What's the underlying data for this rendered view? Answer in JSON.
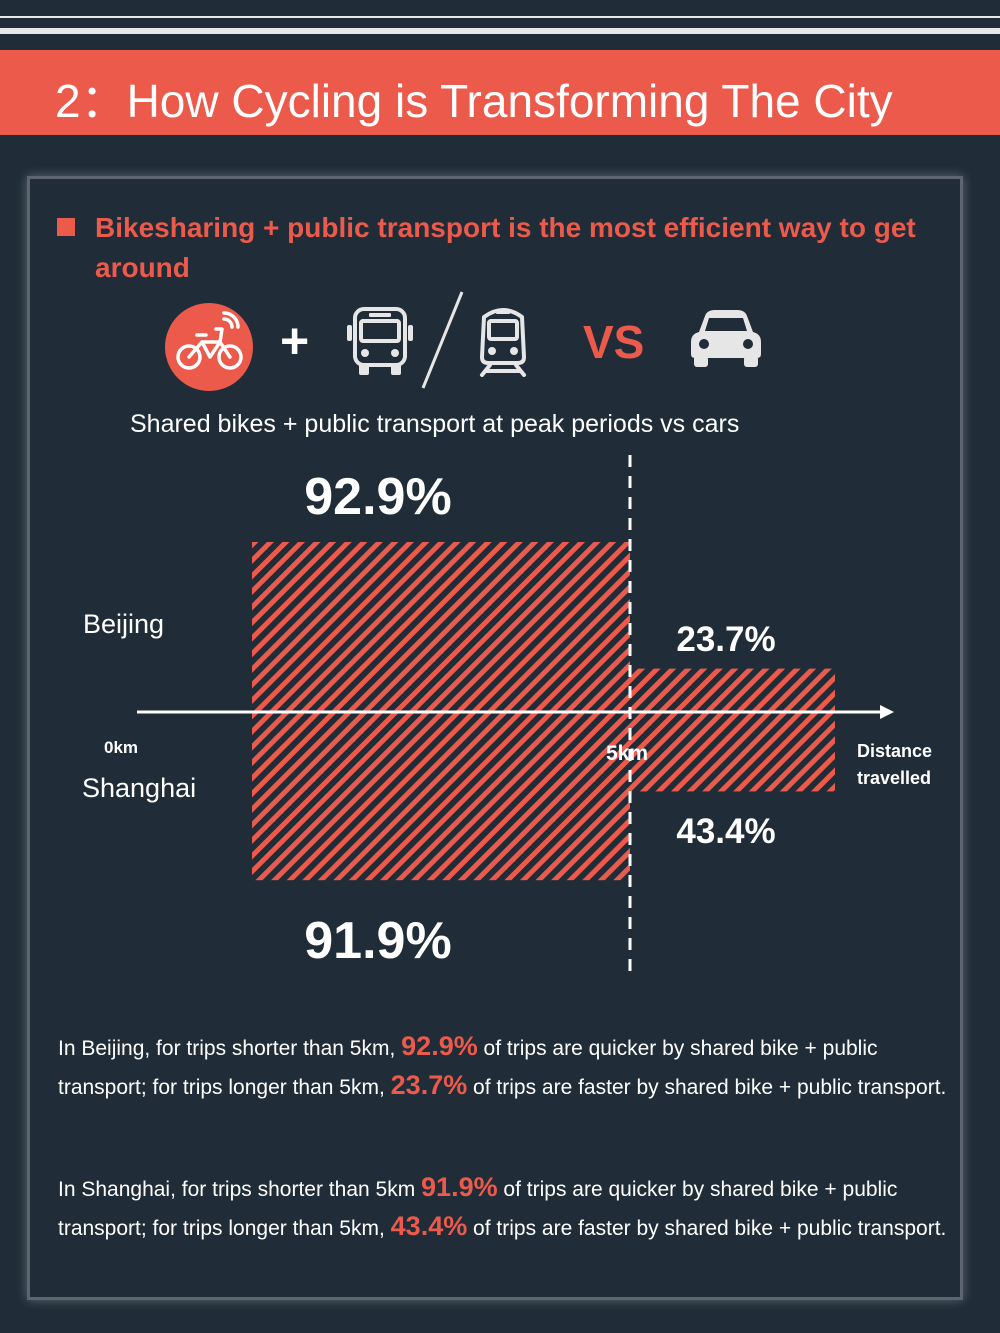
{
  "header": {
    "title": "2：How Cycling is Transforming The City"
  },
  "headline": "Bikesharing + public transport is the most efficient way to get around",
  "comparison": {
    "plus": "+",
    "vs": "VS",
    "icons": [
      "bike-icon",
      "bus-icon",
      "train-icon",
      "car-icon"
    ]
  },
  "chart_data": {
    "type": "bar",
    "title": "Shared bikes + public transport at peak periods vs cars",
    "x_axis": {
      "start_label": "0km",
      "split_label": "5km",
      "axis_label": [
        "Distance",
        "travelled"
      ]
    },
    "categories": [
      "Shorter than 5km",
      "Longer than 5km"
    ],
    "series": [
      {
        "name": "Beijing",
        "values": [
          92.9,
          23.7
        ],
        "labels": [
          "92.9%",
          "23.7%"
        ]
      },
      {
        "name": "Shanghai",
        "values": [
          91.9,
          43.4
        ],
        "labels": [
          "91.9%",
          "43.4%"
        ]
      }
    ],
    "unit": "%",
    "colors": {
      "bar": "#ec5a4b",
      "background": "#202d38"
    }
  },
  "text": {
    "beijing": {
      "part1": "In Beijing, for trips shorter than 5km, ",
      "v1": "92.9%",
      "part2": " of trips are quicker by shared bike + public transport; for trips longer than 5km, ",
      "v2": "23.7%",
      "part3": " of trips are faster by shared bike + public transport."
    },
    "shanghai": {
      "part1": "In Shanghai, for trips shorter than 5km ",
      "v1": "91.9%",
      "part2": " of trips are quicker by shared bike + public transport; for trips longer than 5km, ",
      "v2": "43.4%",
      "part3": " of trips are faster by shared bike + public transport."
    }
  },
  "colors": {
    "accent": "#ec5a4b",
    "background": "#202d38",
    "text": "#ffffff",
    "icon": "#e6e6e6"
  }
}
